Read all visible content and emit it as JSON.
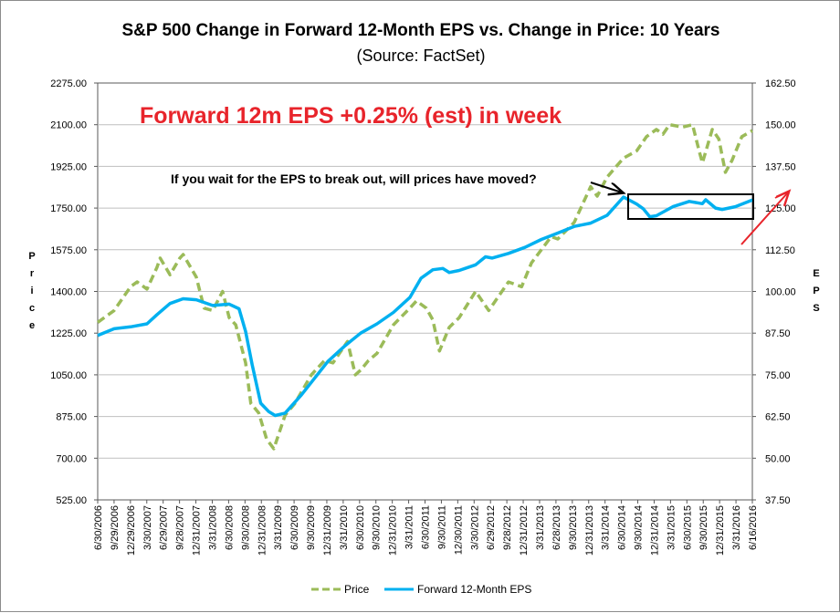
{
  "chart_data": {
    "type": "line",
    "title": "S&P 500 Change in Forward 12-Month EPS vs. Change in Price: 10 Years",
    "subtitle": "(Source: FactSet)",
    "ylabel_left": "Price",
    "ylabel_right": "EPS",
    "y_left": {
      "min": 525,
      "max": 2275,
      "step": 175,
      "ticks": [
        "525.00",
        "700.00",
        "875.00",
        "1050.00",
        "1225.00",
        "1400.00",
        "1575.00",
        "1750.00",
        "1925.00",
        "2100.00",
        "2275.00"
      ]
    },
    "y_right": {
      "min": 37.5,
      "max": 162.5,
      "step": 12.5,
      "ticks": [
        "37.50",
        "50.00",
        "62.50",
        "75.00",
        "87.50",
        "100.00",
        "112.50",
        "125.00",
        "137.50",
        "150.00",
        "162.50"
      ]
    },
    "x_range": [
      "2006-06-30",
      "2016-06-16"
    ],
    "x_tick_labels": [
      "6/30/2006",
      "9/29/2006",
      "12/29/2006",
      "3/30/2007",
      "6/29/2007",
      "9/28/2007",
      "12/31/2007",
      "3/31/2008",
      "6/30/2008",
      "9/30/2008",
      "12/31/2008",
      "3/31/2009",
      "6/30/2009",
      "9/30/2009",
      "12/31/2009",
      "3/31/2010",
      "6/30/2010",
      "9/30/2010",
      "12/31/2010",
      "3/31/2011",
      "6/30/2011",
      "9/30/2011",
      "12/30/2011",
      "3/30/2012",
      "6/29/2012",
      "9/28/2012",
      "12/31/2012",
      "3/31/2013",
      "6/28/2013",
      "9/30/2013",
      "12/31/2013",
      "3/31/2014",
      "6/30/2014",
      "9/30/2014",
      "12/31/2014",
      "3/31/2015",
      "6/30/2015",
      "9/30/2015",
      "12/31/2015",
      "3/31/2016",
      "6/16/2016"
    ],
    "series": [
      {
        "name": "Price",
        "axis": "left",
        "color": "#9bbb59",
        "style": "dashed",
        "points": [
          [
            2006.5,
            1270
          ],
          [
            2006.75,
            1320
          ],
          [
            2007.0,
            1420
          ],
          [
            2007.1,
            1440
          ],
          [
            2007.25,
            1410
          ],
          [
            2007.4,
            1500
          ],
          [
            2007.45,
            1540
          ],
          [
            2007.6,
            1470
          ],
          [
            2007.75,
            1540
          ],
          [
            2007.8,
            1555
          ],
          [
            2008.0,
            1460
          ],
          [
            2008.12,
            1330
          ],
          [
            2008.25,
            1320
          ],
          [
            2008.4,
            1400
          ],
          [
            2008.5,
            1290
          ],
          [
            2008.6,
            1260
          ],
          [
            2008.75,
            1100
          ],
          [
            2008.83,
            930
          ],
          [
            2008.95,
            890
          ],
          [
            2009.07,
            780
          ],
          [
            2009.18,
            740
          ],
          [
            2009.35,
            880
          ],
          [
            2009.5,
            930
          ],
          [
            2009.75,
            1050
          ],
          [
            2009.95,
            1110
          ],
          [
            2010.08,
            1100
          ],
          [
            2010.3,
            1190
          ],
          [
            2010.42,
            1050
          ],
          [
            2010.5,
            1070
          ],
          [
            2010.62,
            1110
          ],
          [
            2010.75,
            1140
          ],
          [
            2011.0,
            1260
          ],
          [
            2011.25,
            1330
          ],
          [
            2011.35,
            1360
          ],
          [
            2011.5,
            1330
          ],
          [
            2011.6,
            1280
          ],
          [
            2011.7,
            1150
          ],
          [
            2011.85,
            1250
          ],
          [
            2012.0,
            1290
          ],
          [
            2012.25,
            1400
          ],
          [
            2012.45,
            1320
          ],
          [
            2012.75,
            1440
          ],
          [
            2012.95,
            1420
          ],
          [
            2013.1,
            1520
          ],
          [
            2013.4,
            1630
          ],
          [
            2013.5,
            1620
          ],
          [
            2013.75,
            1690
          ],
          [
            2014.0,
            1840
          ],
          [
            2014.1,
            1800
          ],
          [
            2014.25,
            1880
          ],
          [
            2014.5,
            1960
          ],
          [
            2014.7,
            1990
          ],
          [
            2014.85,
            2050
          ],
          [
            2015.0,
            2080
          ],
          [
            2015.1,
            2060
          ],
          [
            2015.2,
            2100
          ],
          [
            2015.4,
            2090
          ],
          [
            2015.55,
            2100
          ],
          [
            2015.65,
            1990
          ],
          [
            2015.7,
            1940
          ],
          [
            2015.85,
            2080
          ],
          [
            2015.95,
            2040
          ],
          [
            2016.05,
            1900
          ],
          [
            2016.15,
            1950
          ],
          [
            2016.3,
            2050
          ],
          [
            2016.46,
            2075
          ]
        ]
      },
      {
        "name": "Forward 12-Month EPS",
        "axis": "right",
        "color": "#00b0f0",
        "style": "solid",
        "points": [
          [
            2006.5,
            86.8
          ],
          [
            2006.75,
            88.8
          ],
          [
            2007.0,
            89.4
          ],
          [
            2007.25,
            90.3
          ],
          [
            2007.4,
            93.0
          ],
          [
            2007.6,
            96.4
          ],
          [
            2007.8,
            97.8
          ],
          [
            2008.0,
            97.5
          ],
          [
            2008.25,
            95.8
          ],
          [
            2008.5,
            96.2
          ],
          [
            2008.65,
            94.8
          ],
          [
            2008.75,
            88.0
          ],
          [
            2008.85,
            78.0
          ],
          [
            2008.98,
            66.5
          ],
          [
            2009.1,
            64.0
          ],
          [
            2009.2,
            62.8
          ],
          [
            2009.35,
            63.5
          ],
          [
            2009.6,
            69.0
          ],
          [
            2009.8,
            74.0
          ],
          [
            2010.0,
            79.0
          ],
          [
            2010.25,
            83.5
          ],
          [
            2010.5,
            87.5
          ],
          [
            2010.75,
            90.3
          ],
          [
            2011.0,
            93.7
          ],
          [
            2011.25,
            98.2
          ],
          [
            2011.42,
            104.0
          ],
          [
            2011.6,
            106.5
          ],
          [
            2011.75,
            106.9
          ],
          [
            2011.85,
            105.7
          ],
          [
            2012.0,
            106.3
          ],
          [
            2012.25,
            108.0
          ],
          [
            2012.4,
            110.4
          ],
          [
            2012.5,
            110.0
          ],
          [
            2012.75,
            111.4
          ],
          [
            2013.0,
            113.2
          ],
          [
            2013.25,
            115.6
          ],
          [
            2013.5,
            117.5
          ],
          [
            2013.75,
            119.5
          ],
          [
            2014.0,
            120.5
          ],
          [
            2014.25,
            122.8
          ],
          [
            2014.5,
            128.3
          ],
          [
            2014.7,
            126.2
          ],
          [
            2014.8,
            124.8
          ],
          [
            2014.9,
            122.4
          ],
          [
            2015.0,
            122.7
          ],
          [
            2015.25,
            125.4
          ],
          [
            2015.5,
            127.0
          ],
          [
            2015.7,
            126.3
          ],
          [
            2015.75,
            127.5
          ],
          [
            2015.9,
            125.0
          ],
          [
            2016.0,
            124.6
          ],
          [
            2016.2,
            125.4
          ],
          [
            2016.46,
            127.4
          ]
        ]
      }
    ],
    "annotations": {
      "headline": "Forward 12m EPS +0.25% (est) in week",
      "question": "If you wait for the EPS to break out, will prices have moved?"
    },
    "legend": {
      "position": "bottom",
      "items": [
        "Price",
        "Forward 12-Month EPS"
      ]
    },
    "colors": {
      "price": "#9bbb59",
      "eps": "#00b0f0",
      "headline": "#e8242b",
      "arrow_red": "#e8242b",
      "gridline": "#bfbfbf"
    }
  }
}
